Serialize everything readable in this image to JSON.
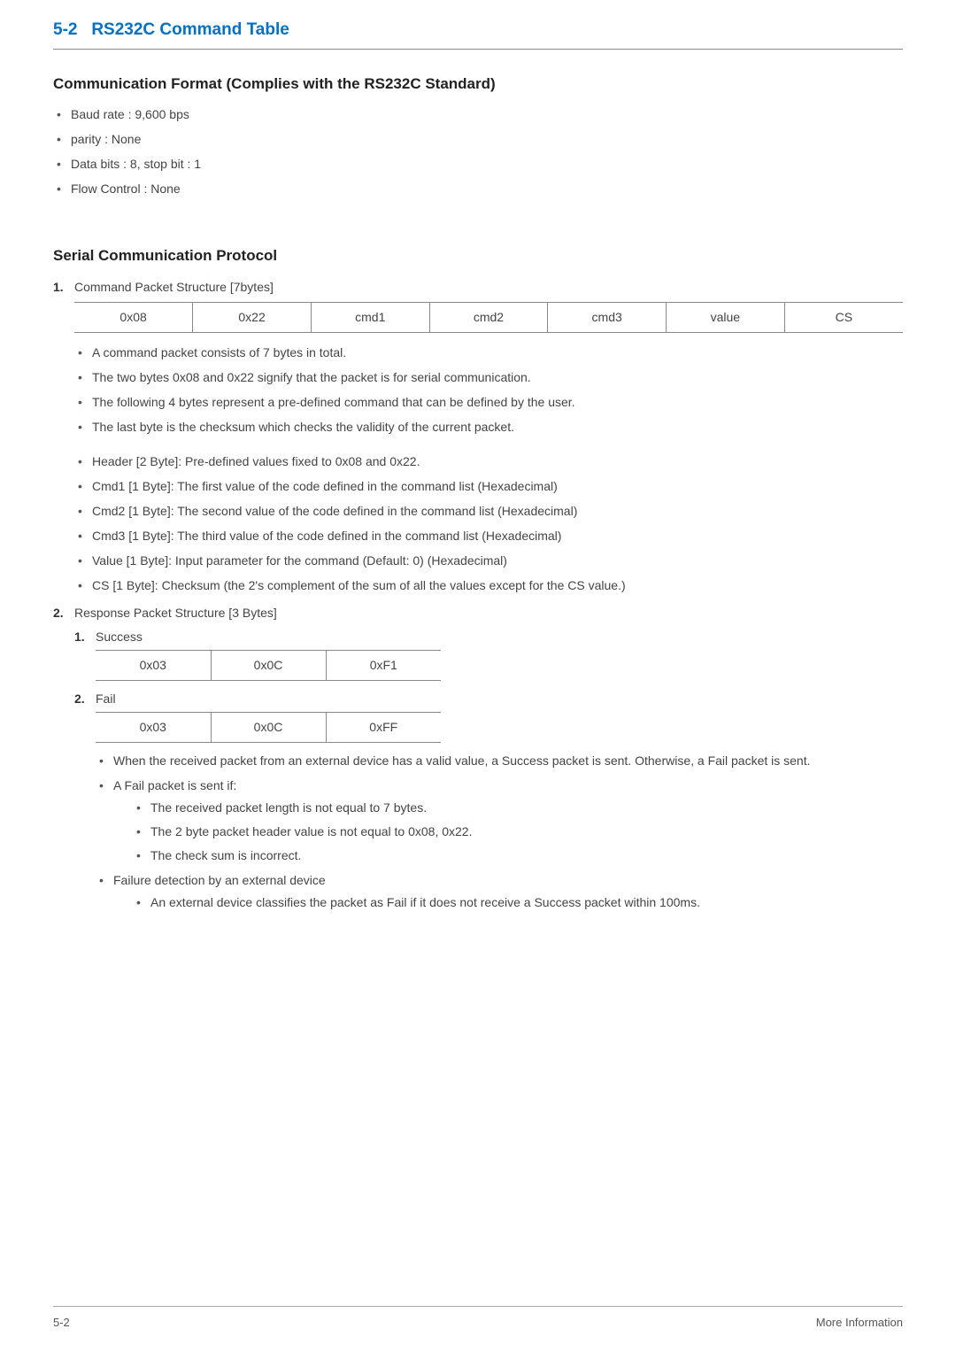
{
  "section": {
    "number": "5-2",
    "title": "RS232C Command Table"
  },
  "comm_format": {
    "heading": "Communication Format (Complies with the RS232C Standard)",
    "items": [
      "Baud rate : 9,600 bps",
      "parity : None",
      "Data bits : 8, stop bit : 1",
      "Flow Control : None"
    ]
  },
  "serial_protocol": {
    "heading": "Serial Communication Protocol",
    "cmd_packet_title": "Command Packet Structure [7bytes]",
    "packet7": [
      "0x08",
      "0x22",
      "cmd1",
      "cmd2",
      "cmd3",
      "value",
      "CS"
    ],
    "packet_notes_a": [
      "A command packet consists of 7 bytes in total.",
      "The two bytes 0x08 and 0x22 signify that the packet is for serial communication.",
      "The following 4 bytes represent a pre-defined command that can be defined by the user.",
      "The last byte is the checksum which checks the validity of the current packet."
    ],
    "packet_notes_b": [
      "Header [2 Byte]: Pre-defined values fixed to 0x08 and 0x22.",
      "Cmd1 [1 Byte]: The first value of the code defined in the command list (Hexadecimal)",
      "Cmd2 [1 Byte]: The second value of the code defined in the command list (Hexadecimal)",
      "Cmd3 [1 Byte]: The third value of the code defined in the command list (Hexadecimal)",
      "Value [1 Byte]: Input parameter for the command (Default: 0) (Hexadecimal)",
      "CS [1 Byte]: Checksum (the 2's complement of the sum of all the values except for the CS value.)"
    ],
    "response_title": "Response Packet Structure [3 Bytes]",
    "success_label": "Success",
    "success_packet": [
      "0x03",
      "0x0C",
      "0xF1"
    ],
    "fail_label": "Fail",
    "fail_packet": [
      "0x03",
      "0x0C",
      "0xFF"
    ],
    "fail_notes_top": [
      "When the received packet from an external device has a valid value, a Success packet is sent. Otherwise, a Fail packet is sent.",
      "A Fail packet is sent if:"
    ],
    "fail_conditions": [
      "The received packet length is not equal to 7 bytes.",
      "The 2 byte packet header value is not equal to 0x08, 0x22.",
      "The check sum is incorrect."
    ],
    "failure_detect_label": "Failure detection by an external device",
    "failure_detect_item": "An external device classifies the packet as Fail if it does not receive a Success packet within 100ms."
  },
  "footer": {
    "left": "5-2",
    "right": "More Information"
  },
  "colors": {
    "heading_blue": "#0070c0",
    "text": "#333333",
    "border": "#888888"
  }
}
